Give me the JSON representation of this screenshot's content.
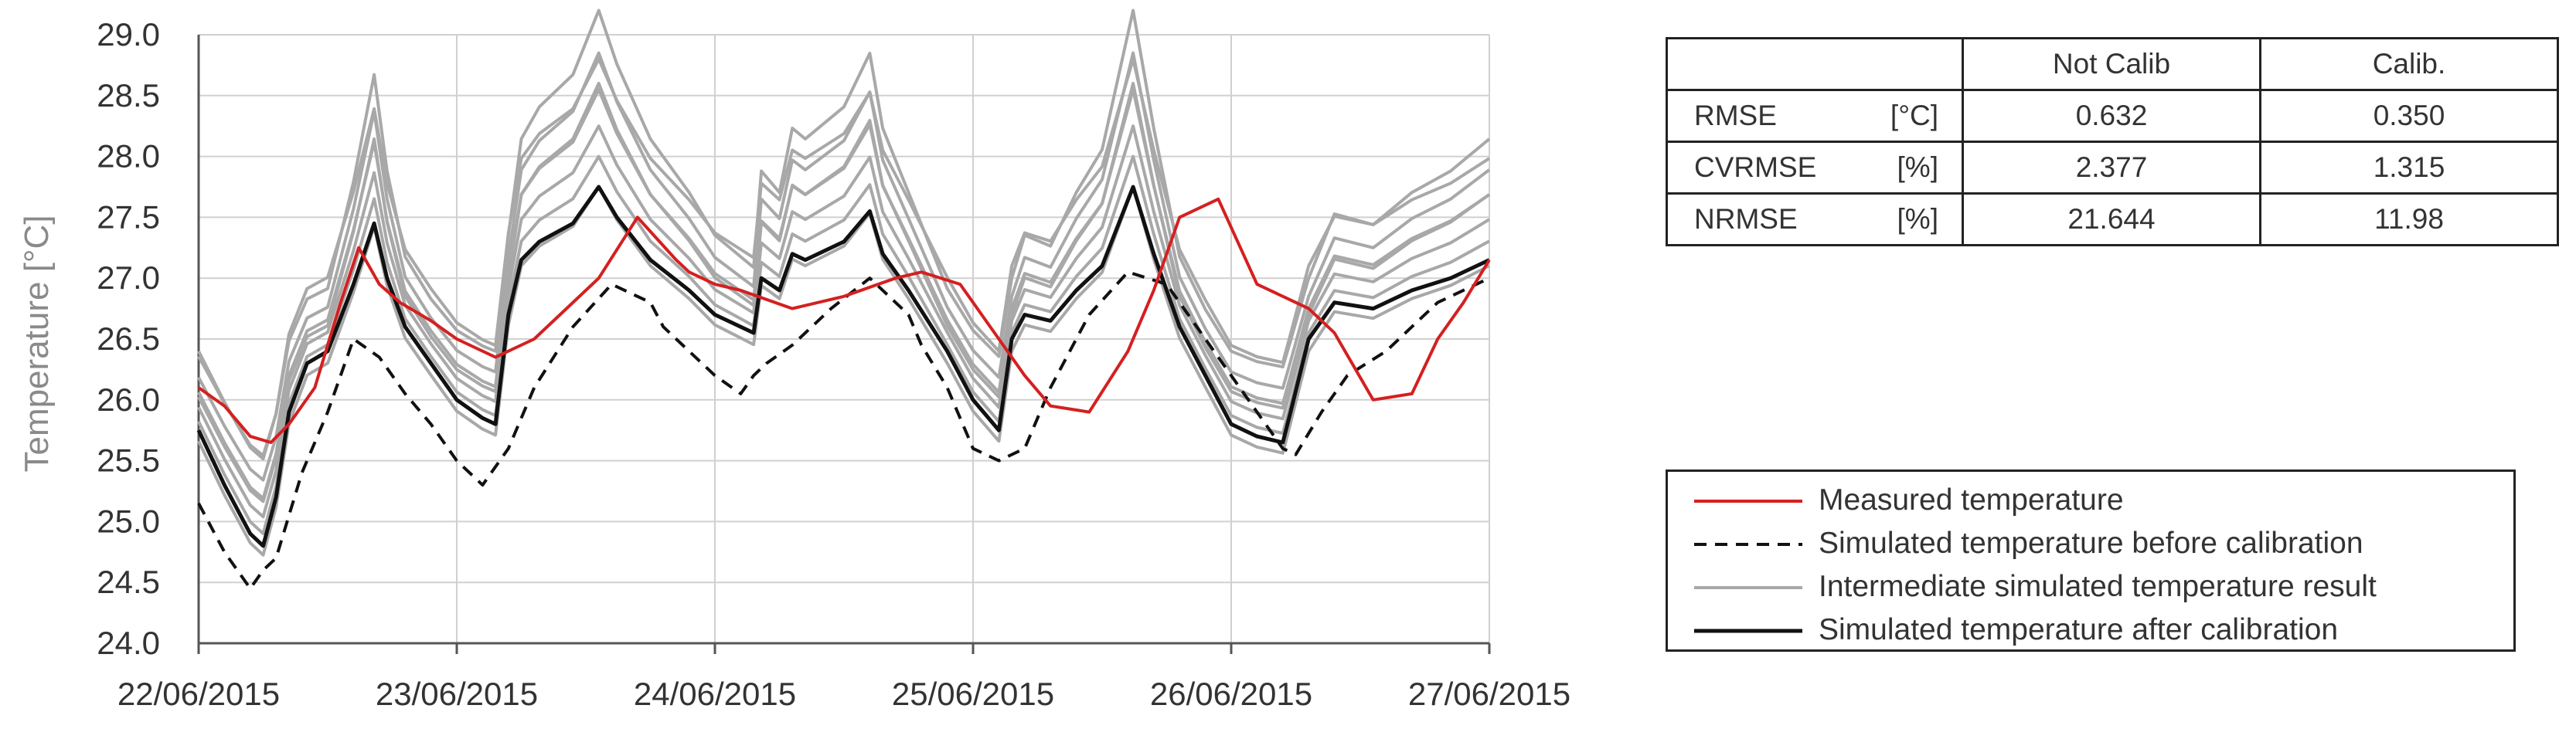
{
  "chart_data": {
    "type": "line",
    "ylabel": "Temperature [°C]",
    "xlabel": "",
    "ylim": [
      24.0,
      29.0
    ],
    "yticks": [
      "24.0",
      "24.5",
      "25.0",
      "25.5",
      "26.0",
      "26.5",
      "27.0",
      "27.5",
      "28.0",
      "28.5",
      "29.0"
    ],
    "x_range_days": [
      "22/06/2015",
      "27/06/2015"
    ],
    "xticks": [
      "22/06/2015",
      "23/06/2015",
      "24/06/2015",
      "25/06/2015",
      "26/06/2015",
      "27/06/2015"
    ],
    "grid": true,
    "series": [
      {
        "name": "Measured temperature",
        "color": "#d42020",
        "style": "solid",
        "x": [
          0,
          0.1,
          0.2,
          0.28,
          0.35,
          0.45,
          0.55,
          0.62,
          0.7,
          0.78,
          0.9,
          1.0,
          1.15,
          1.3,
          1.4,
          1.55,
          1.7,
          1.85,
          1.9,
          2.0,
          2.1,
          2.3,
          2.5,
          2.7,
          2.8,
          2.95,
          3.1,
          3.2,
          3.3,
          3.45,
          3.6,
          3.7,
          3.8,
          3.95,
          4.1,
          4.2,
          4.3,
          4.4,
          4.55,
          4.7,
          4.8,
          4.9,
          5.0
        ],
        "values": [
          26.1,
          25.95,
          25.7,
          25.65,
          25.8,
          26.1,
          26.8,
          27.25,
          26.95,
          26.8,
          26.65,
          26.5,
          26.35,
          26.5,
          26.7,
          27.0,
          27.5,
          27.15,
          27.05,
          26.95,
          26.9,
          26.75,
          26.85,
          27.0,
          27.05,
          26.95,
          26.5,
          26.2,
          25.95,
          25.9,
          26.4,
          26.9,
          27.5,
          27.65,
          26.95,
          26.85,
          26.75,
          26.55,
          26.0,
          26.05,
          26.5,
          26.8,
          27.15
        ]
      },
      {
        "name": "Simulated temperature before calibration",
        "color": "#111111",
        "style": "dashed",
        "x": [
          0,
          0.1,
          0.2,
          0.25,
          0.3,
          0.4,
          0.5,
          0.6,
          0.7,
          0.8,
          0.9,
          1.0,
          1.1,
          1.2,
          1.3,
          1.45,
          1.6,
          1.75,
          1.8,
          1.9,
          2.0,
          2.1,
          2.15,
          2.2,
          2.3,
          2.45,
          2.6,
          2.75,
          2.8,
          2.9,
          3.0,
          3.1,
          3.2,
          3.3,
          3.45,
          3.6,
          3.75,
          3.8,
          3.9,
          4.0,
          4.1,
          4.2,
          4.25,
          4.35,
          4.45,
          4.6,
          4.7,
          4.8,
          5.0
        ],
        "values": [
          25.15,
          24.75,
          24.45,
          24.6,
          24.7,
          25.4,
          25.9,
          26.5,
          26.35,
          26.05,
          25.8,
          25.5,
          25.3,
          25.6,
          26.1,
          26.6,
          26.95,
          26.8,
          26.6,
          26.4,
          26.2,
          26.05,
          26.2,
          26.3,
          26.45,
          26.75,
          27.0,
          26.7,
          26.45,
          26.1,
          25.6,
          25.5,
          25.6,
          26.1,
          26.7,
          27.05,
          26.95,
          26.8,
          26.5,
          26.2,
          25.9,
          25.6,
          25.55,
          25.9,
          26.2,
          26.4,
          26.6,
          26.8,
          27.0
        ]
      }
    ],
    "intermediate_series_name": "Intermediate simulated temperature result",
    "after_calibration_series": {
      "name": "Simulated temperature after calibration",
      "color": "#111111",
      "style": "solid",
      "x": [
        0,
        0.1,
        0.2,
        0.25,
        0.3,
        0.35,
        0.42,
        0.5,
        0.6,
        0.68,
        0.73,
        0.8,
        0.9,
        1.0,
        1.1,
        1.15,
        1.2,
        1.25,
        1.32,
        1.45,
        1.55,
        1.62,
        1.75,
        1.9,
        2.0,
        2.1,
        2.15,
        2.18,
        2.25,
        2.3,
        2.35,
        2.5,
        2.6,
        2.65,
        2.75,
        2.9,
        3.0,
        3.1,
        3.15,
        3.2,
        3.3,
        3.4,
        3.5,
        3.62,
        3.7,
        3.8,
        3.9,
        4.0,
        4.1,
        4.2,
        4.23,
        4.3,
        4.4,
        4.55,
        4.7,
        4.85,
        5.0
      ],
      "values": [
        25.75,
        25.3,
        24.9,
        24.8,
        25.2,
        25.9,
        26.3,
        26.4,
        26.95,
        27.45,
        27.0,
        26.6,
        26.3,
        26.0,
        25.85,
        25.8,
        26.7,
        27.15,
        27.3,
        27.45,
        27.75,
        27.5,
        27.15,
        26.9,
        26.7,
        26.6,
        26.55,
        27.0,
        26.9,
        27.2,
        27.15,
        27.3,
        27.55,
        27.2,
        26.9,
        26.4,
        26.0,
        25.75,
        26.5,
        26.7,
        26.65,
        26.9,
        27.1,
        27.75,
        27.2,
        26.6,
        26.2,
        25.8,
        25.7,
        25.65,
        25.9,
        26.5,
        26.8,
        26.75,
        26.9,
        27.0,
        27.15
      ]
    }
  },
  "table": {
    "headers": [
      "",
      "Not Calib",
      "Calib."
    ],
    "rows": [
      {
        "metric": "RMSE",
        "unit": "[°C]",
        "not_calib": "0.632",
        "calib": "0.350"
      },
      {
        "metric": "CVRMSE",
        "unit": "[%]",
        "not_calib": "2.377",
        "calib": "1.315"
      },
      {
        "metric": "NRMSE",
        "unit": "[%]",
        "not_calib": "21.644",
        "calib": "11.98"
      }
    ]
  },
  "legend": {
    "items": [
      {
        "label": "Measured temperature",
        "color": "#d42020",
        "style": "solid"
      },
      {
        "label": "Simulated temperature before calibration",
        "color": "#111111",
        "style": "dashed"
      },
      {
        "label": "Intermediate simulated temperature result",
        "color": "#a8a8a8",
        "style": "solid"
      },
      {
        "label": "Simulated temperature after calibration",
        "color": "#111111",
        "style": "solid"
      }
    ]
  }
}
